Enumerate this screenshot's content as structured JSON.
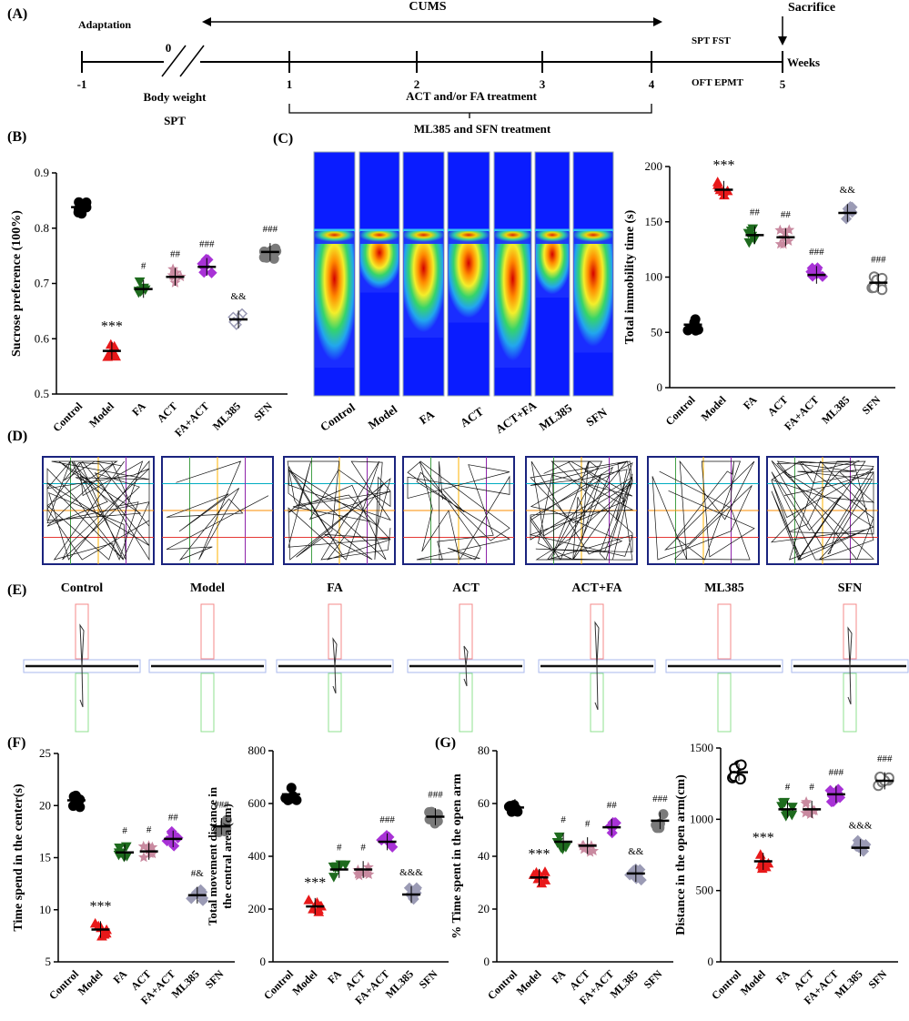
{
  "panels": {
    "A": "(A)",
    "B": "(B)",
    "C": "(C)",
    "D": "(D)",
    "E": "(E)",
    "F": "(F)",
    "G": "(G)"
  },
  "timeline": {
    "adaptation": "Adaptation",
    "cums": "CUMS",
    "sacrifice": "Sacrifice",
    "weeks": "Weeks",
    "ticks": [
      "-1",
      "0",
      "1",
      "2",
      "3",
      "4",
      "5"
    ],
    "body_weight": "Body weight",
    "spt": "SPT",
    "spt_fst": "SPT FST",
    "oft_epmt": "OFT EPMT",
    "act_fa": "ACT and/or FA treatment",
    "ml_sfn": "ML385 and SFN treatment"
  },
  "heatmap_labels": [
    "Control",
    "Model",
    "FA",
    "ACT",
    "ACT+FA",
    "ML385",
    "SFN"
  ],
  "epm_labels": [
    "Control",
    "Model",
    "FA",
    "ACT",
    "ACT+FA",
    "ML385",
    "SFN"
  ],
  "groups": [
    "Control",
    "Model",
    "FA",
    "ACT",
    "FA+ACT",
    "ML385",
    "SFN"
  ],
  "colors": [
    "#000000",
    "#e8191a",
    "#1e6b1e",
    "#c98aa0",
    "#a832d6",
    "#9b9bb5",
    "#7a7a7a"
  ],
  "chart_data": [
    {
      "id": "B",
      "type": "scatter",
      "ylabel": "Sucrose preference (100%)",
      "ylim": [
        0.5,
        0.9
      ],
      "yticks": [
        "0.5",
        "0.6",
        "0.7",
        "0.8",
        "0.9"
      ],
      "means": [
        0.838,
        0.578,
        0.69,
        0.712,
        0.73,
        0.635,
        0.757
      ],
      "sig": [
        "",
        "***",
        "#",
        "##",
        "###",
        "&&",
        "###"
      ]
    },
    {
      "id": "C",
      "type": "scatter",
      "ylabel": "Total immobility time (s)",
      "ylim": [
        0,
        200
      ],
      "yticks": [
        "0",
        "50",
        "100",
        "150",
        "200"
      ],
      "means": [
        57,
        179,
        138,
        136,
        102,
        158,
        95
      ],
      "sig": [
        "",
        "***",
        "##",
        "##",
        "###",
        "&&",
        "###"
      ]
    },
    {
      "id": "F1",
      "type": "scatter",
      "ylabel": "Time spend in the center(s)",
      "ylim": [
        5,
        25
      ],
      "yticks": [
        "5",
        "10",
        "15",
        "20",
        "25"
      ],
      "means": [
        20.5,
        8.1,
        15.5,
        15.6,
        16.8,
        11.4,
        18.0
      ],
      "sig": [
        "",
        "***",
        "#",
        "#",
        "##",
        "#&",
        "###"
      ]
    },
    {
      "id": "F2",
      "type": "scatter",
      "ylabel": "Total movement distance in the central area (cm)",
      "ylim": [
        0,
        800
      ],
      "yticks": [
        "0",
        "200",
        "400",
        "600",
        "800"
      ],
      "means": [
        635,
        210,
        350,
        350,
        455,
        255,
        550
      ],
      "sig": [
        "",
        "***",
        "#",
        "#",
        "###",
        "&&&",
        "###"
      ]
    },
    {
      "id": "G1",
      "type": "scatter",
      "ylabel": "% Time spent in the open arm",
      "ylim": [
        0,
        80
      ],
      "yticks": [
        "0",
        "20",
        "40",
        "60",
        "80"
      ],
      "means": [
        58.5,
        32,
        45.5,
        44,
        51,
        33.5,
        53.5
      ],
      "sig": [
        "",
        "***",
        "#",
        "#",
        "##",
        "&&",
        "###"
      ]
    },
    {
      "id": "G2",
      "type": "scatter",
      "ylabel": "Distance in the open arm(cm)",
      "ylim": [
        0,
        1500
      ],
      "yticks": [
        "0",
        "500",
        "1000",
        "1500"
      ],
      "means": [
        1330,
        705,
        1070,
        1070,
        1175,
        800,
        1270
      ],
      "sig": [
        "",
        "***",
        "#",
        "#",
        "###",
        "&&&",
        "###"
      ]
    }
  ]
}
